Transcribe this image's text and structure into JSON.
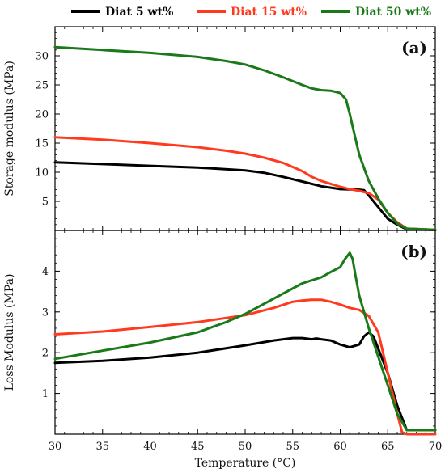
{
  "legend": [
    {
      "label": "Diat 5 wt%",
      "color": "#000000"
    },
    {
      "label": "Diat 15 wt%",
      "color": "#ff3b1f"
    },
    {
      "label": "Diat 50 wt%",
      "color": "#1a7a1a"
    }
  ],
  "xlabel": "Temperature (°C)",
  "chart_data": [
    {
      "type": "line",
      "panel_label": "(a)",
      "ylabel": "Storage modulus (MPa)",
      "xlim": [
        30,
        70
      ],
      "ylim": [
        0,
        35
      ],
      "xticks": [
        30,
        35,
        40,
        45,
        50,
        55,
        60,
        65,
        70
      ],
      "yticks": [
        5,
        10,
        15,
        20,
        25,
        30
      ],
      "series": [
        {
          "name": "Diat 5 wt%",
          "color": "#000000",
          "x": [
            30,
            35,
            40,
            45,
            50,
            52,
            54,
            56,
            58,
            60,
            62,
            62.5,
            63,
            64,
            65,
            66,
            67,
            70
          ],
          "y": [
            11.7,
            11.4,
            11.1,
            10.8,
            10.3,
            9.9,
            9.2,
            8.4,
            7.6,
            7.1,
            7.0,
            6.9,
            6.0,
            4.0,
            2.0,
            1.0,
            0.2,
            0.1
          ]
        },
        {
          "name": "Diat 15 wt%",
          "color": "#ff3b1f",
          "x": [
            30,
            35,
            40,
            45,
            48,
            50,
            52,
            54,
            55,
            56,
            57,
            58,
            59,
            60,
            61,
            62,
            63,
            64,
            65,
            66,
            67,
            70
          ],
          "y": [
            16.0,
            15.6,
            15.0,
            14.3,
            13.7,
            13.2,
            12.5,
            11.6,
            10.9,
            10.2,
            9.2,
            8.5,
            8.0,
            7.5,
            7.1,
            6.8,
            6.4,
            5.3,
            3.0,
            1.4,
            0.3,
            0.1
          ]
        },
        {
          "name": "Diat 50 wt%",
          "color": "#1a7a1a",
          "x": [
            30,
            35,
            40,
            45,
            48,
            50,
            52,
            54,
            56,
            57,
            58,
            59,
            60,
            60.6,
            61,
            61.5,
            62,
            63,
            64,
            65,
            66,
            67,
            70
          ],
          "y": [
            31.5,
            31.0,
            30.5,
            29.8,
            29.1,
            28.5,
            27.5,
            26.3,
            25.0,
            24.4,
            24.1,
            24.0,
            23.6,
            22.5,
            20.0,
            16.5,
            13.0,
            8.5,
            5.5,
            3.0,
            1.2,
            0.3,
            0.1
          ]
        }
      ]
    },
    {
      "type": "line",
      "panel_label": "(b)",
      "ylabel": "Loss Modulus (MPa)",
      "xlim": [
        30,
        70
      ],
      "ylim": [
        0,
        5
      ],
      "xticks": [
        30,
        35,
        40,
        45,
        50,
        55,
        60,
        65,
        70
      ],
      "yticks": [
        1,
        2,
        3,
        4
      ],
      "series": [
        {
          "name": "Diat 5 wt%",
          "color": "#000000",
          "x": [
            30,
            35,
            40,
            45,
            50,
            53,
            55,
            56,
            57,
            57.5,
            58,
            59,
            60,
            61,
            62,
            62.5,
            63,
            63.5,
            64,
            65,
            66,
            67,
            70
          ],
          "y": [
            1.75,
            1.8,
            1.88,
            2.0,
            2.18,
            2.3,
            2.36,
            2.36,
            2.33,
            2.35,
            2.33,
            2.3,
            2.2,
            2.13,
            2.2,
            2.4,
            2.5,
            2.4,
            2.1,
            1.5,
            0.7,
            0.1,
            0.1
          ]
        },
        {
          "name": "Diat 15 wt%",
          "color": "#ff3b1f",
          "x": [
            30,
            35,
            40,
            45,
            50,
            53,
            55,
            56,
            57,
            58,
            59,
            60,
            61,
            62,
            63,
            64,
            65,
            66,
            66.5,
            67,
            70
          ],
          "y": [
            2.45,
            2.52,
            2.63,
            2.75,
            2.92,
            3.1,
            3.25,
            3.28,
            3.3,
            3.3,
            3.25,
            3.18,
            3.1,
            3.05,
            2.9,
            2.5,
            1.5,
            0.5,
            0.05,
            0.0,
            0.0
          ]
        },
        {
          "name": "Diat 50 wt%",
          "color": "#1a7a1a",
          "x": [
            30,
            35,
            40,
            45,
            48,
            50,
            52,
            54,
            56,
            58,
            59,
            60,
            60.5,
            61,
            61.3,
            61.6,
            62,
            63,
            64,
            65,
            66,
            67,
            70
          ],
          "y": [
            1.85,
            2.05,
            2.25,
            2.5,
            2.75,
            2.95,
            3.2,
            3.45,
            3.7,
            3.85,
            3.98,
            4.1,
            4.3,
            4.45,
            4.3,
            3.9,
            3.4,
            2.6,
            1.9,
            1.2,
            0.5,
            0.1,
            0.1
          ]
        }
      ]
    }
  ]
}
